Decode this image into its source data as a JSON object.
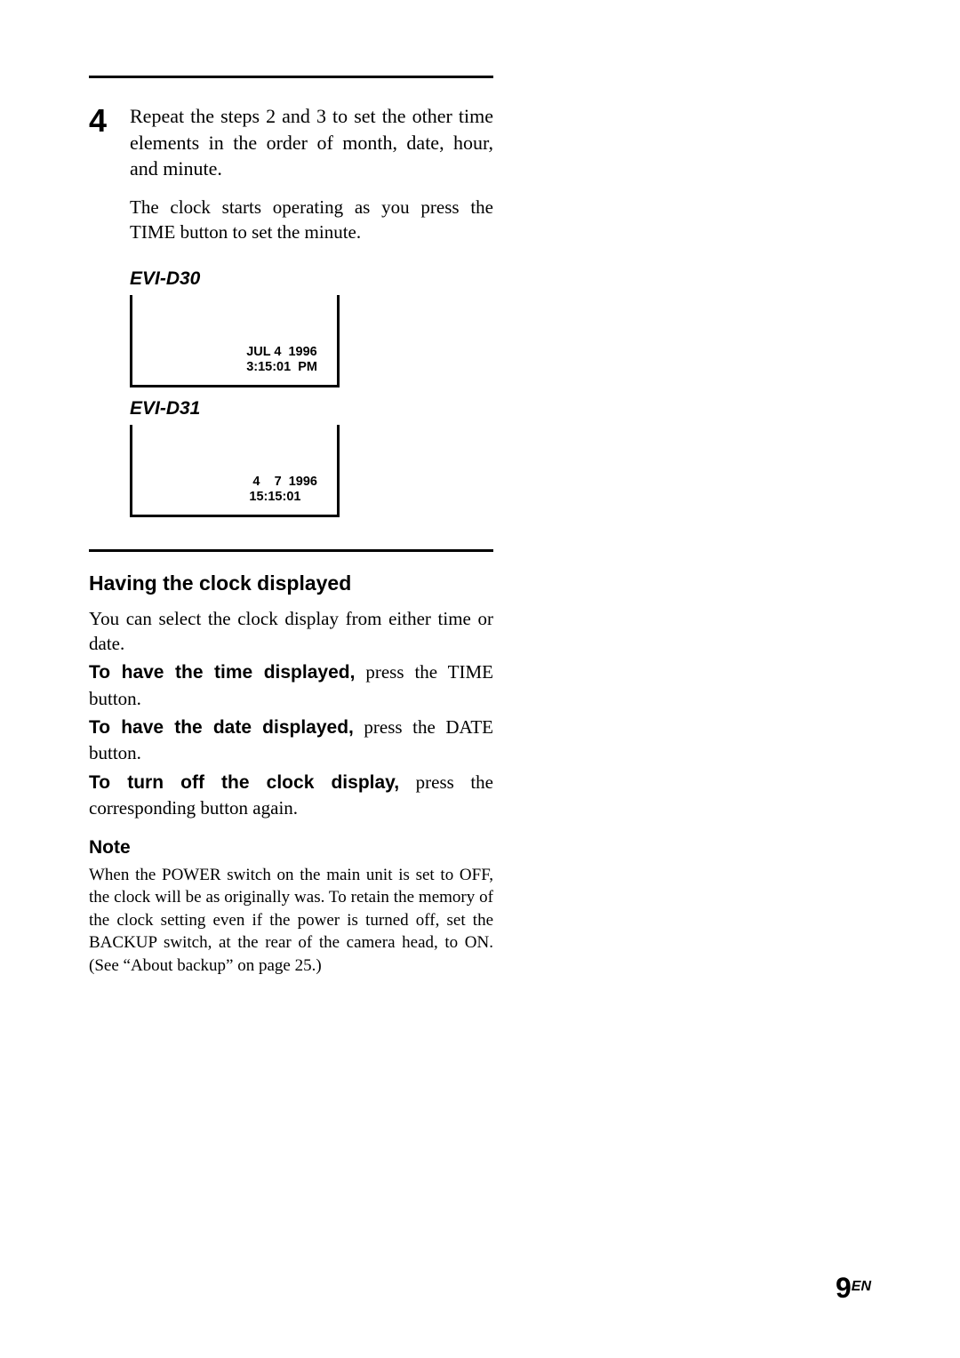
{
  "step": {
    "number": "4",
    "main": "Repeat the steps 2 and 3 to set the other time elements in the order of month, date, hour, and minute.",
    "sub": "The clock starts operating as you press the TIME button to set the minute."
  },
  "displays": [
    {
      "model": "EVI-D30",
      "line1": "JUL 4  1996",
      "line2": "3:15:01  PM"
    },
    {
      "model": "EVI-D31",
      "line1": " 4    7  1996",
      "line2": "15:15:01"
    }
  ],
  "clockSection": {
    "heading": "Having the clock displayed",
    "intro": "You can select the clock display from either time or date.",
    "items": [
      {
        "lead": "To have the time displayed,",
        "rest": " press the TIME button."
      },
      {
        "lead": "To have the date displayed,",
        "rest": " press the DATE button."
      },
      {
        "lead": "To turn off the clock display,",
        "rest": " press the corresponding button again."
      }
    ]
  },
  "note": {
    "heading": "Note",
    "body": "When the POWER switch on the main unit is set to OFF, the clock will be as originally was.  To retain the memory of the clock setting even if the power is turned off, set the BACKUP switch, at the rear of the camera head, to ON. (See “About backup” on page 25.)"
  },
  "pageNumber": {
    "num": "9",
    "lang": "EN"
  },
  "colors": {
    "text": "#000000",
    "background": "#ffffff",
    "rule": "#000000"
  }
}
